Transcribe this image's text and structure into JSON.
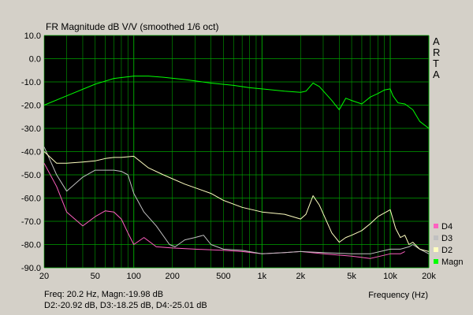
{
  "chart_data": {
    "type": "line",
    "title": "FR Magnitude dB V/V (smoothed 1/6 oct)",
    "xlabel": "Frequency (Hz)",
    "ylabel": "",
    "x_scale": "log",
    "xlim": [
      20,
      20000
    ],
    "ylim": [
      -90,
      10
    ],
    "grid": true,
    "legend_position": "right-bottom",
    "brand": [
      "A",
      "R",
      "T",
      "A"
    ],
    "x_ticks": [
      {
        "value": 20,
        "label": "20"
      },
      {
        "value": 50,
        "label": "50"
      },
      {
        "value": 100,
        "label": "100"
      },
      {
        "value": 200,
        "label": "200"
      },
      {
        "value": 500,
        "label": "500"
      },
      {
        "value": 1000,
        "label": "1k"
      },
      {
        "value": 2000,
        "label": "2k"
      },
      {
        "value": 5000,
        "label": "5k"
      },
      {
        "value": 10000,
        "label": "10k"
      },
      {
        "value": 20000,
        "label": "20k"
      }
    ],
    "y_ticks": [
      {
        "value": 10,
        "label": "10.0"
      },
      {
        "value": 0,
        "label": "0.0"
      },
      {
        "value": -10,
        "label": "-10.0"
      },
      {
        "value": -20,
        "label": "-20.0"
      },
      {
        "value": -30,
        "label": "-30.0"
      },
      {
        "value": -40,
        "label": "-40.0"
      },
      {
        "value": -50,
        "label": "-50.0"
      },
      {
        "value": -60,
        "label": "-60.0"
      },
      {
        "value": -70,
        "label": "-70.0"
      },
      {
        "value": -80,
        "label": "-80.0"
      },
      {
        "value": -90,
        "label": "-90.0"
      }
    ],
    "series": [
      {
        "name": "Magn",
        "color": "#00ff00",
        "x": [
          20,
          30,
          50,
          70,
          100,
          130,
          170,
          250,
          400,
          600,
          800,
          1000,
          1500,
          2000,
          2200,
          2500,
          2800,
          3500,
          4000,
          4500,
          5000,
          6000,
          7000,
          8000,
          9000,
          10000,
          10500,
          11500,
          13000,
          15000,
          17000,
          20000
        ],
        "y": [
          -20,
          -16,
          -11,
          -8.5,
          -7.5,
          -7.5,
          -8,
          -9,
          -10.5,
          -11.5,
          -12.5,
          -13,
          -14,
          -14.5,
          -14,
          -10.5,
          -12,
          -18,
          -22,
          -17,
          -18,
          -19.5,
          -16.5,
          -15,
          -13.5,
          -13,
          -16,
          -19,
          -19.5,
          -22,
          -27,
          -30
        ]
      },
      {
        "name": "D2",
        "color": "#ffffc0",
        "x": [
          20,
          25,
          30,
          40,
          50,
          60,
          70,
          80,
          100,
          130,
          170,
          250,
          400,
          500,
          700,
          1000,
          1500,
          2000,
          2200,
          2500,
          2800,
          3500,
          4000,
          4500,
          5000,
          6000,
          7000,
          8000,
          10000,
          11000,
          12000,
          13000,
          14000,
          15000,
          17000,
          20000
        ],
        "y": [
          -40,
          -45,
          -45,
          -44.5,
          -44,
          -43,
          -42.5,
          -42.5,
          -42,
          -47,
          -50,
          -54,
          -58,
          -61,
          -64,
          -66,
          -67,
          -69,
          -67,
          -59,
          -63,
          -75,
          -79,
          -77,
          -76,
          -74,
          -71,
          -68,
          -65,
          -73,
          -77,
          -76,
          -80,
          -79,
          -82,
          -83
        ]
      },
      {
        "name": "D3",
        "color": "#c0c0c0",
        "x": [
          20,
          25,
          30,
          40,
          50,
          60,
          70,
          80,
          90,
          100,
          120,
          150,
          190,
          210,
          250,
          300,
          350,
          400,
          500,
          700,
          1000,
          1500,
          2000,
          3000,
          5000,
          7000,
          10000,
          12000,
          14000,
          15000,
          17000,
          20000
        ],
        "y": [
          -38,
          -50,
          -57,
          -51,
          -48,
          -48,
          -48,
          -48.5,
          -50,
          -58,
          -66,
          -72,
          -80,
          -81,
          -78,
          -77,
          -76,
          -80,
          -82,
          -82.5,
          -84,
          -83.5,
          -83,
          -83.5,
          -84,
          -84,
          -82,
          -82,
          -81,
          -80,
          -82,
          -84
        ]
      },
      {
        "name": "D4",
        "color": "#ff60c0",
        "x": [
          20,
          25,
          30,
          40,
          50,
          60,
          70,
          80,
          90,
          100,
          120,
          150,
          200,
          300,
          500,
          700,
          1000,
          1500,
          2000,
          3000,
          5000,
          7000,
          10000,
          12000,
          13000
        ],
        "y": [
          -45,
          -55,
          -66,
          -72,
          -68,
          -65.5,
          -66,
          -69,
          -75,
          -80,
          -77,
          -81,
          -81.5,
          -82,
          -82.5,
          -83,
          -84,
          -83.5,
          -83,
          -84,
          -85,
          -86,
          -84,
          -84,
          -83
        ]
      }
    ],
    "readout": {
      "line1": "Freq: 20.2 Hz, Magn:-19.98 dB",
      "line2": "D2:-20.92 dB, D3:-18.25 dB, D4:-25.01 dB"
    }
  }
}
